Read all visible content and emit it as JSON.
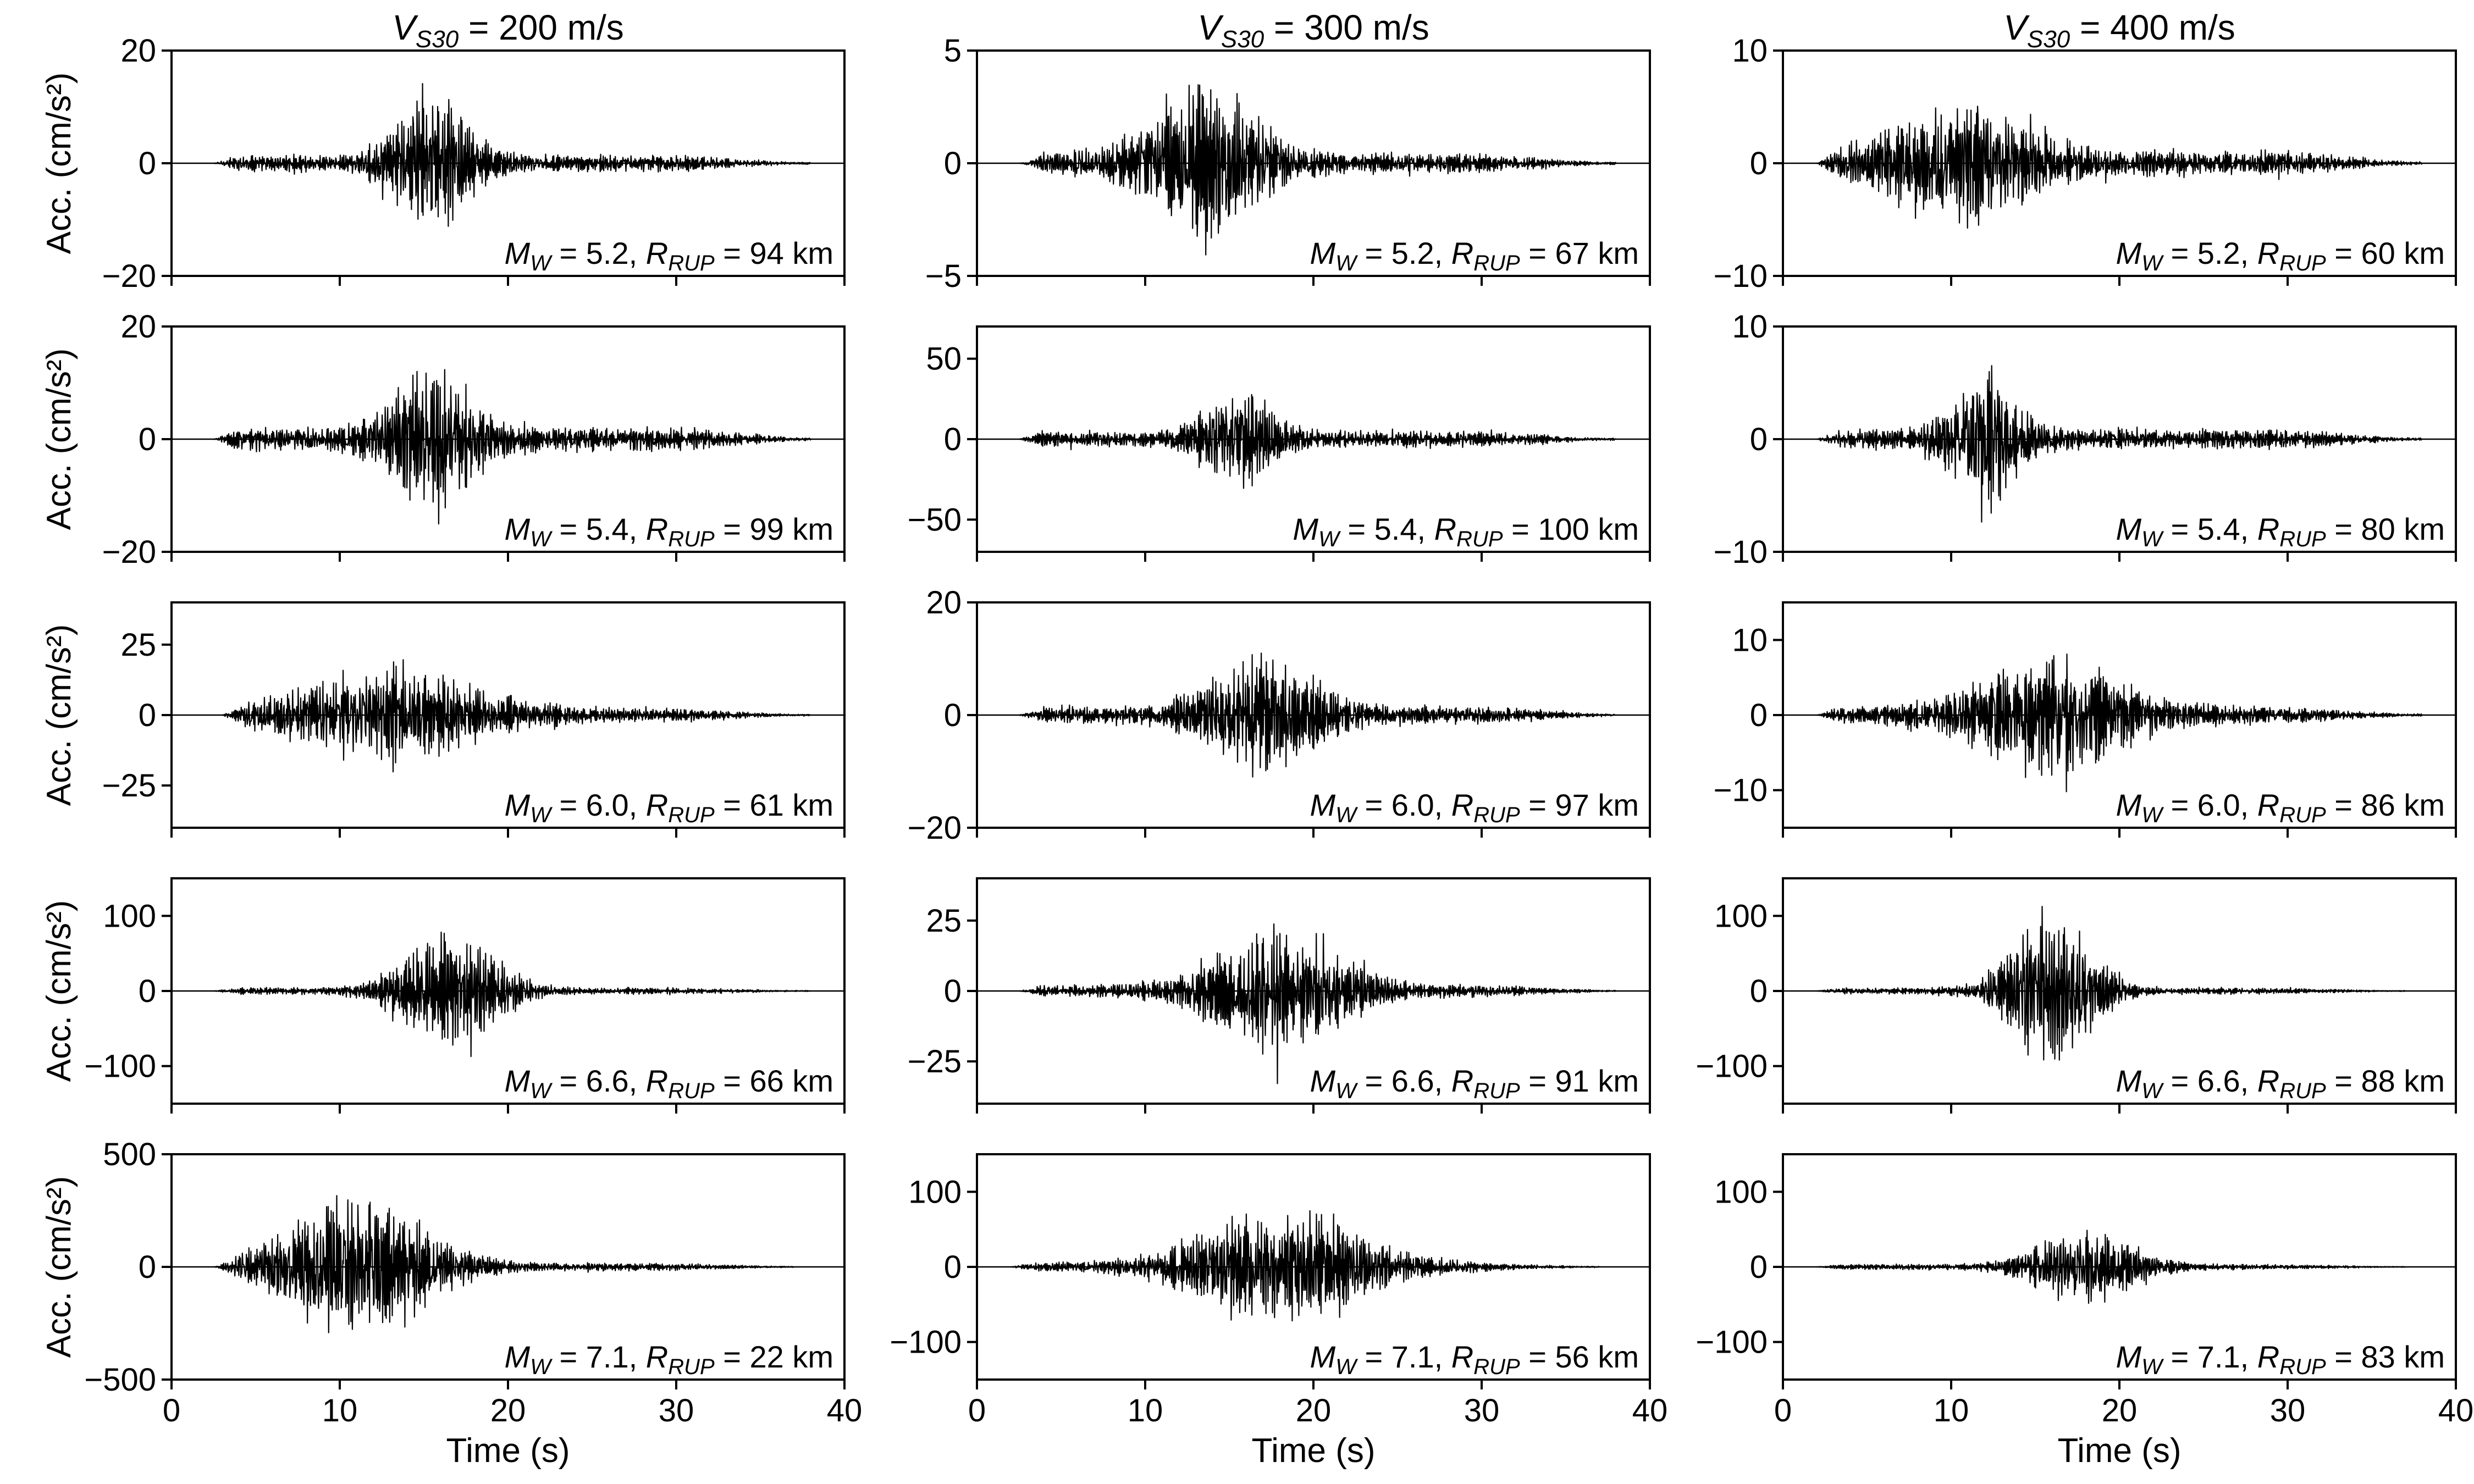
{
  "colors": {
    "trace": "#000000",
    "axes": "#000000",
    "background": "#ffffff"
  },
  "shared": {
    "xlabel": "Time (s)",
    "ylabel": "Acc. (cm/s²)",
    "xlim": [
      0,
      40
    ],
    "xticks": [
      0,
      10,
      20,
      30,
      40
    ]
  },
  "columns": [
    {
      "title_sym": "V",
      "title_sub": "S30",
      "title_rest": " = 200 m/s"
    },
    {
      "title_sym": "V",
      "title_sub": "S30",
      "title_rest": " = 300 m/s"
    },
    {
      "title_sym": "V",
      "title_sub": "S30",
      "title_rest": " = 400 m/s"
    }
  ],
  "chart_data": [
    {
      "type": "line",
      "row": 0,
      "col": 0,
      "ylim": [
        -20,
        20
      ],
      "yticks": [
        -20,
        0,
        20
      ],
      "start_s": 2.5,
      "end_s": 38,
      "strong_center_s": 15.5,
      "strong_width_s": 2.8,
      "peak": 14,
      "bg_level": 2,
      "annotation": {
        "m_sym": "M",
        "m_sub": "W",
        "m_val": " = 5.2, ",
        "r_sym": "R",
        "r_sub": "RUP",
        "r_val": " = 94 km"
      }
    },
    {
      "type": "line",
      "row": 0,
      "col": 1,
      "ylim": [
        -5,
        5
      ],
      "yticks": [
        -5,
        0,
        5
      ],
      "start_s": 2.5,
      "end_s": 38,
      "strong_center_s": 13.5,
      "strong_width_s": 4,
      "peak": 4.4,
      "bg_level": 0.6,
      "annotation": {
        "m_sym": "M",
        "m_sub": "W",
        "m_val": " = 5.2, ",
        "r_sym": "R",
        "r_sub": "RUP",
        "r_val": " = 67 km"
      }
    },
    {
      "type": "line",
      "row": 0,
      "col": 2,
      "ylim": [
        -10,
        10
      ],
      "yticks": [
        -10,
        0,
        10
      ],
      "start_s": 2,
      "end_s": 38,
      "strong_center_s": 10.5,
      "strong_width_s": 5,
      "peak": 6.3,
      "bg_level": 1.5,
      "annotation": {
        "m_sym": "M",
        "m_sub": "W",
        "m_val": " = 5.2, ",
        "r_sym": "R",
        "r_sub": "RUP",
        "r_val": " = 60 km"
      }
    },
    {
      "type": "line",
      "row": 1,
      "col": 0,
      "ylim": [
        -20,
        20
      ],
      "yticks": [
        -20,
        0,
        20
      ],
      "start_s": 2.5,
      "end_s": 38,
      "strong_center_s": 15.5,
      "strong_width_s": 3,
      "peak": 14.5,
      "bg_level": 3,
      "annotation": {
        "m_sym": "M",
        "m_sub": "W",
        "m_val": " = 5.4, ",
        "r_sym": "R",
        "r_sub": "RUP",
        "r_val": " = 99 km"
      }
    },
    {
      "type": "line",
      "row": 1,
      "col": 1,
      "ylim": [
        -70,
        70
      ],
      "yticks": [
        -50,
        0,
        50
      ],
      "start_s": 2.5,
      "end_s": 38,
      "strong_center_s": 15.5,
      "strong_width_s": 2.5,
      "peak": 37,
      "bg_level": 7,
      "annotation": {
        "m_sym": "M",
        "m_sub": "W",
        "m_val": " = 5.4, ",
        "r_sym": "R",
        "r_sub": "RUP",
        "r_val": " = 100 km"
      }
    },
    {
      "type": "line",
      "row": 1,
      "col": 2,
      "ylim": [
        -10,
        10
      ],
      "yticks": [
        -10,
        0,
        10
      ],
      "start_s": 2,
      "end_s": 38,
      "strong_center_s": 12,
      "strong_width_s": 2.5,
      "peak": 7,
      "bg_level": 1.2,
      "annotation": {
        "m_sym": "M",
        "m_sub": "W",
        "m_val": " = 5.4, ",
        "r_sym": "R",
        "r_sub": "RUP",
        "r_val": " = 80 km"
      }
    },
    {
      "type": "line",
      "row": 2,
      "col": 0,
      "ylim": [
        -40,
        40
      ],
      "yticks": [
        -25,
        0,
        25
      ],
      "start_s": 3,
      "end_s": 38,
      "strong_center_s": 13,
      "strong_width_s": 7,
      "peak": 18,
      "bg_level": 3,
      "annotation": {
        "m_sym": "M",
        "m_sub": "W",
        "m_val": " = 6.0, ",
        "r_sym": "R",
        "r_sub": "RUP",
        "r_val": " = 61 km"
      }
    },
    {
      "type": "line",
      "row": 2,
      "col": 1,
      "ylim": [
        -20,
        20
      ],
      "yticks": [
        -20,
        0,
        20
      ],
      "start_s": 2.5,
      "end_s": 38,
      "strong_center_s": 17,
      "strong_width_s": 4,
      "peak": 12.5,
      "bg_level": 2,
      "annotation": {
        "m_sym": "M",
        "m_sub": "W",
        "m_val": " = 6.0, ",
        "r_sym": "R",
        "r_sub": "RUP",
        "r_val": " = 97 km"
      }
    },
    {
      "type": "line",
      "row": 2,
      "col": 2,
      "ylim": [
        -15,
        15
      ],
      "yticks": [
        -10,
        0,
        10
      ],
      "start_s": 2,
      "end_s": 38,
      "strong_center_s": 16,
      "strong_width_s": 5.5,
      "peak": 9.5,
      "bg_level": 1.5,
      "annotation": {
        "m_sym": "M",
        "m_sub": "W",
        "m_val": " = 6.0, ",
        "r_sym": "R",
        "r_sub": "RUP",
        "r_val": " = 86 km"
      }
    },
    {
      "type": "line",
      "row": 3,
      "col": 0,
      "ylim": [
        -150,
        150
      ],
      "yticks": [
        -100,
        0,
        100
      ],
      "start_s": 2.5,
      "end_s": 38,
      "strong_center_s": 16.5,
      "strong_width_s": 3.5,
      "peak": 100,
      "bg_level": 6,
      "annotation": {
        "m_sym": "M",
        "m_sub": "W",
        "m_val": " = 6.6, ",
        "r_sym": "R",
        "r_sub": "RUP",
        "r_val": " = 66 km"
      }
    },
    {
      "type": "line",
      "row": 3,
      "col": 1,
      "ylim": [
        -40,
        40
      ],
      "yticks": [
        -25,
        0,
        25
      ],
      "start_s": 2.5,
      "end_s": 38,
      "strong_center_s": 18,
      "strong_width_s": 4.5,
      "peak": 29,
      "bg_level": 3,
      "annotation": {
        "m_sym": "M",
        "m_sub": "W",
        "m_val": " = 6.6, ",
        "r_sym": "R",
        "r_sub": "RUP",
        "r_val": " = 91 km"
      }
    },
    {
      "type": "line",
      "row": 3,
      "col": 2,
      "ylim": [
        -150,
        150
      ],
      "yticks": [
        -100,
        0,
        100
      ],
      "start_s": 2,
      "end_s": 37,
      "strong_center_s": 16,
      "strong_width_s": 3,
      "peak": 130,
      "bg_level": 6,
      "annotation": {
        "m_sym": "M",
        "m_sub": "W",
        "m_val": " = 6.6, ",
        "r_sym": "R",
        "r_sub": "RUP",
        "r_val": " = 88 km"
      }
    },
    {
      "type": "line",
      "row": 4,
      "col": 0,
      "ylim": [
        -500,
        500
      ],
      "yticks": [
        -500,
        0,
        500
      ],
      "start_s": 2.5,
      "end_s": 37,
      "strong_center_s": 11,
      "strong_width_s": 5,
      "peak": 430,
      "bg_level": 25,
      "annotation": {
        "m_sym": "M",
        "m_sub": "W",
        "m_val": " = 7.1, ",
        "r_sym": "R",
        "r_sub": "RUP",
        "r_val": " = 22 km"
      }
    },
    {
      "type": "line",
      "row": 4,
      "col": 1,
      "ylim": [
        -150,
        150
      ],
      "yticks": [
        -100,
        0,
        100
      ],
      "start_s": 2,
      "end_s": 37,
      "strong_center_s": 18,
      "strong_width_s": 6,
      "peak": 95,
      "bg_level": 8,
      "annotation": {
        "m_sym": "M",
        "m_sub": "W",
        "m_val": " = 7.1, ",
        "r_sym": "R",
        "r_sub": "RUP",
        "r_val": " = 56 km"
      }
    },
    {
      "type": "line",
      "row": 4,
      "col": 2,
      "ylim": [
        -150,
        150
      ],
      "yticks": [
        -100,
        0,
        100
      ],
      "start_s": 2,
      "end_s": 37,
      "strong_center_s": 18,
      "strong_width_s": 3.5,
      "peak": 70,
      "bg_level": 5,
      "annotation": {
        "m_sym": "M",
        "m_sub": "W",
        "m_val": " = 7.1, ",
        "r_sym": "R",
        "r_sub": "RUP",
        "r_val": " = 83 km"
      }
    }
  ]
}
